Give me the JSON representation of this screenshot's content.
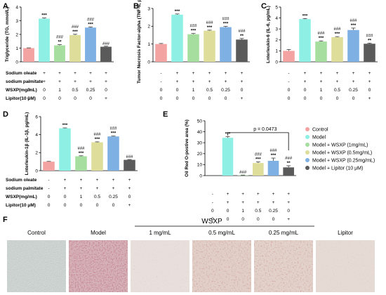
{
  "colors": {
    "control": "#f4a3a3",
    "model": "#8ef0e4",
    "wsxp_1": "#a6dea0",
    "wsxp_05": "#dede9a",
    "wsxp_025": "#7fb0e4",
    "lipitor": "#5a5a5a"
  },
  "legend": {
    "items": [
      {
        "label": "Control",
        "color_key": "control"
      },
      {
        "label": "Model",
        "color_key": "model"
      },
      {
        "label": "Model + WSXP (1mg/mL)",
        "color_key": "wsxp_1"
      },
      {
        "label": "Model + WSXP (0.5mg/mL)",
        "color_key": "wsxp_05"
      },
      {
        "label": "Model + WSXP (0.25mg/mL)",
        "color_key": "wsxp_025"
      },
      {
        "label": "Model + Lipitor (10 μM)",
        "color_key": "lipitor"
      }
    ]
  },
  "treatment_rows": {
    "labels": [
      "Sodium oleate",
      "sodium palmitate",
      "WSXP(mg/mL)",
      "Lipitor(10 μM)"
    ],
    "values": [
      [
        "-",
        "+",
        "+",
        "+",
        "+",
        "+"
      ],
      [
        "-",
        "+",
        "+",
        "+",
        "+",
        "+"
      ],
      [
        "0",
        "0",
        "1",
        "0.5",
        "0.25",
        "0"
      ],
      [
        "0",
        "0",
        "0",
        "0",
        "0",
        "+"
      ]
    ],
    "values_e": [
      [
        "0",
        "0",
        "1",
        "0.5",
        "0.25",
        "0"
      ],
      [
        "0",
        "0",
        "0",
        "0",
        "0",
        "+"
      ]
    ]
  },
  "chart_data": [
    {
      "panel": "A",
      "type": "bar",
      "ylabel": "Triglyceride (TG, mmol/L)",
      "ylim": [
        0,
        4
      ],
      "yticks": [
        0,
        1,
        2,
        3,
        4
      ],
      "values": [
        1.0,
        3.15,
        1.2,
        1.95,
        2.5,
        1.1
      ],
      "errors": [
        0.02,
        0.05,
        0.05,
        0.06,
        0.05,
        0.04
      ],
      "stars": [
        "",
        "***",
        "**",
        "***",
        "***",
        ""
      ],
      "hashes": [
        "",
        "",
        "###",
        "###",
        "###",
        "###"
      ]
    },
    {
      "panel": "B",
      "type": "bar",
      "ylabel": "Tumor Necrosis Factor-alpha (TNF-α, pg/mL)",
      "ylim": [
        0,
        3
      ],
      "yticks": [
        0,
        1,
        2,
        3
      ],
      "values": [
        1.0,
        2.65,
        1.55,
        1.75,
        1.95,
        1.25
      ],
      "errors": [
        0.03,
        0.04,
        0.04,
        0.03,
        0.04,
        0.06
      ],
      "stars": [
        "",
        "***",
        "***",
        "***",
        "***",
        "**"
      ],
      "hashes": [
        "",
        "",
        "###",
        "###",
        "###",
        "###"
      ]
    },
    {
      "panel": "C",
      "type": "bar",
      "ylabel": "Lnterleukin-6 (IL-6, pg/mL)",
      "ylim": [
        0,
        5
      ],
      "yticks": [
        0,
        1,
        2,
        3,
        4,
        5
      ],
      "values": [
        1.0,
        3.9,
        1.85,
        2.25,
        2.9,
        1.65
      ],
      "errors": [
        0.12,
        0.05,
        0.06,
        0.05,
        0.18,
        0.06
      ],
      "stars": [
        "",
        "***",
        "***",
        "***",
        "***",
        "**"
      ],
      "hashes": [
        "",
        "",
        "###",
        "###",
        "###",
        "###"
      ]
    },
    {
      "panel": "D",
      "type": "bar",
      "ylabel": "Lnterleukin-1β (IL-1β, pg/mL)",
      "ylim": [
        0,
        6
      ],
      "yticks": [
        0,
        2,
        4,
        6
      ],
      "values": [
        1.0,
        4.7,
        1.6,
        3.15,
        3.8,
        1.2
      ],
      "errors": [
        0.03,
        0.05,
        0.05,
        0.05,
        0.04,
        0.04
      ],
      "stars": [
        "",
        "***",
        "***",
        "***",
        "***",
        ""
      ],
      "hashes": [
        "",
        "",
        "###",
        "###",
        "###",
        "###"
      ]
    },
    {
      "panel": "E",
      "type": "bar",
      "ylabel": "Oil Red O-postive area (%)",
      "ylim": [
        0,
        50
      ],
      "yticks": [
        0,
        10,
        20,
        30,
        40,
        50
      ],
      "values": [
        0,
        34.5,
        0.3,
        11.5,
        13.5,
        7.5
      ],
      "errors": [
        0,
        1.2,
        0.2,
        1.0,
        2.5,
        1.5
      ],
      "stars": [
        "",
        "***",
        "",
        "***",
        "***",
        "**"
      ],
      "hashes": [
        "",
        "",
        "###",
        "###",
        "###",
        "###"
      ],
      "annotation": "p = 0.0473"
    }
  ],
  "micrographs": {
    "panel": "F",
    "group_label": "WSXP",
    "labels": [
      "Control",
      "Model",
      "1 mg/mL",
      "0.5 mg/mL",
      "0.25 mg/mL",
      "Lipitor"
    ]
  }
}
